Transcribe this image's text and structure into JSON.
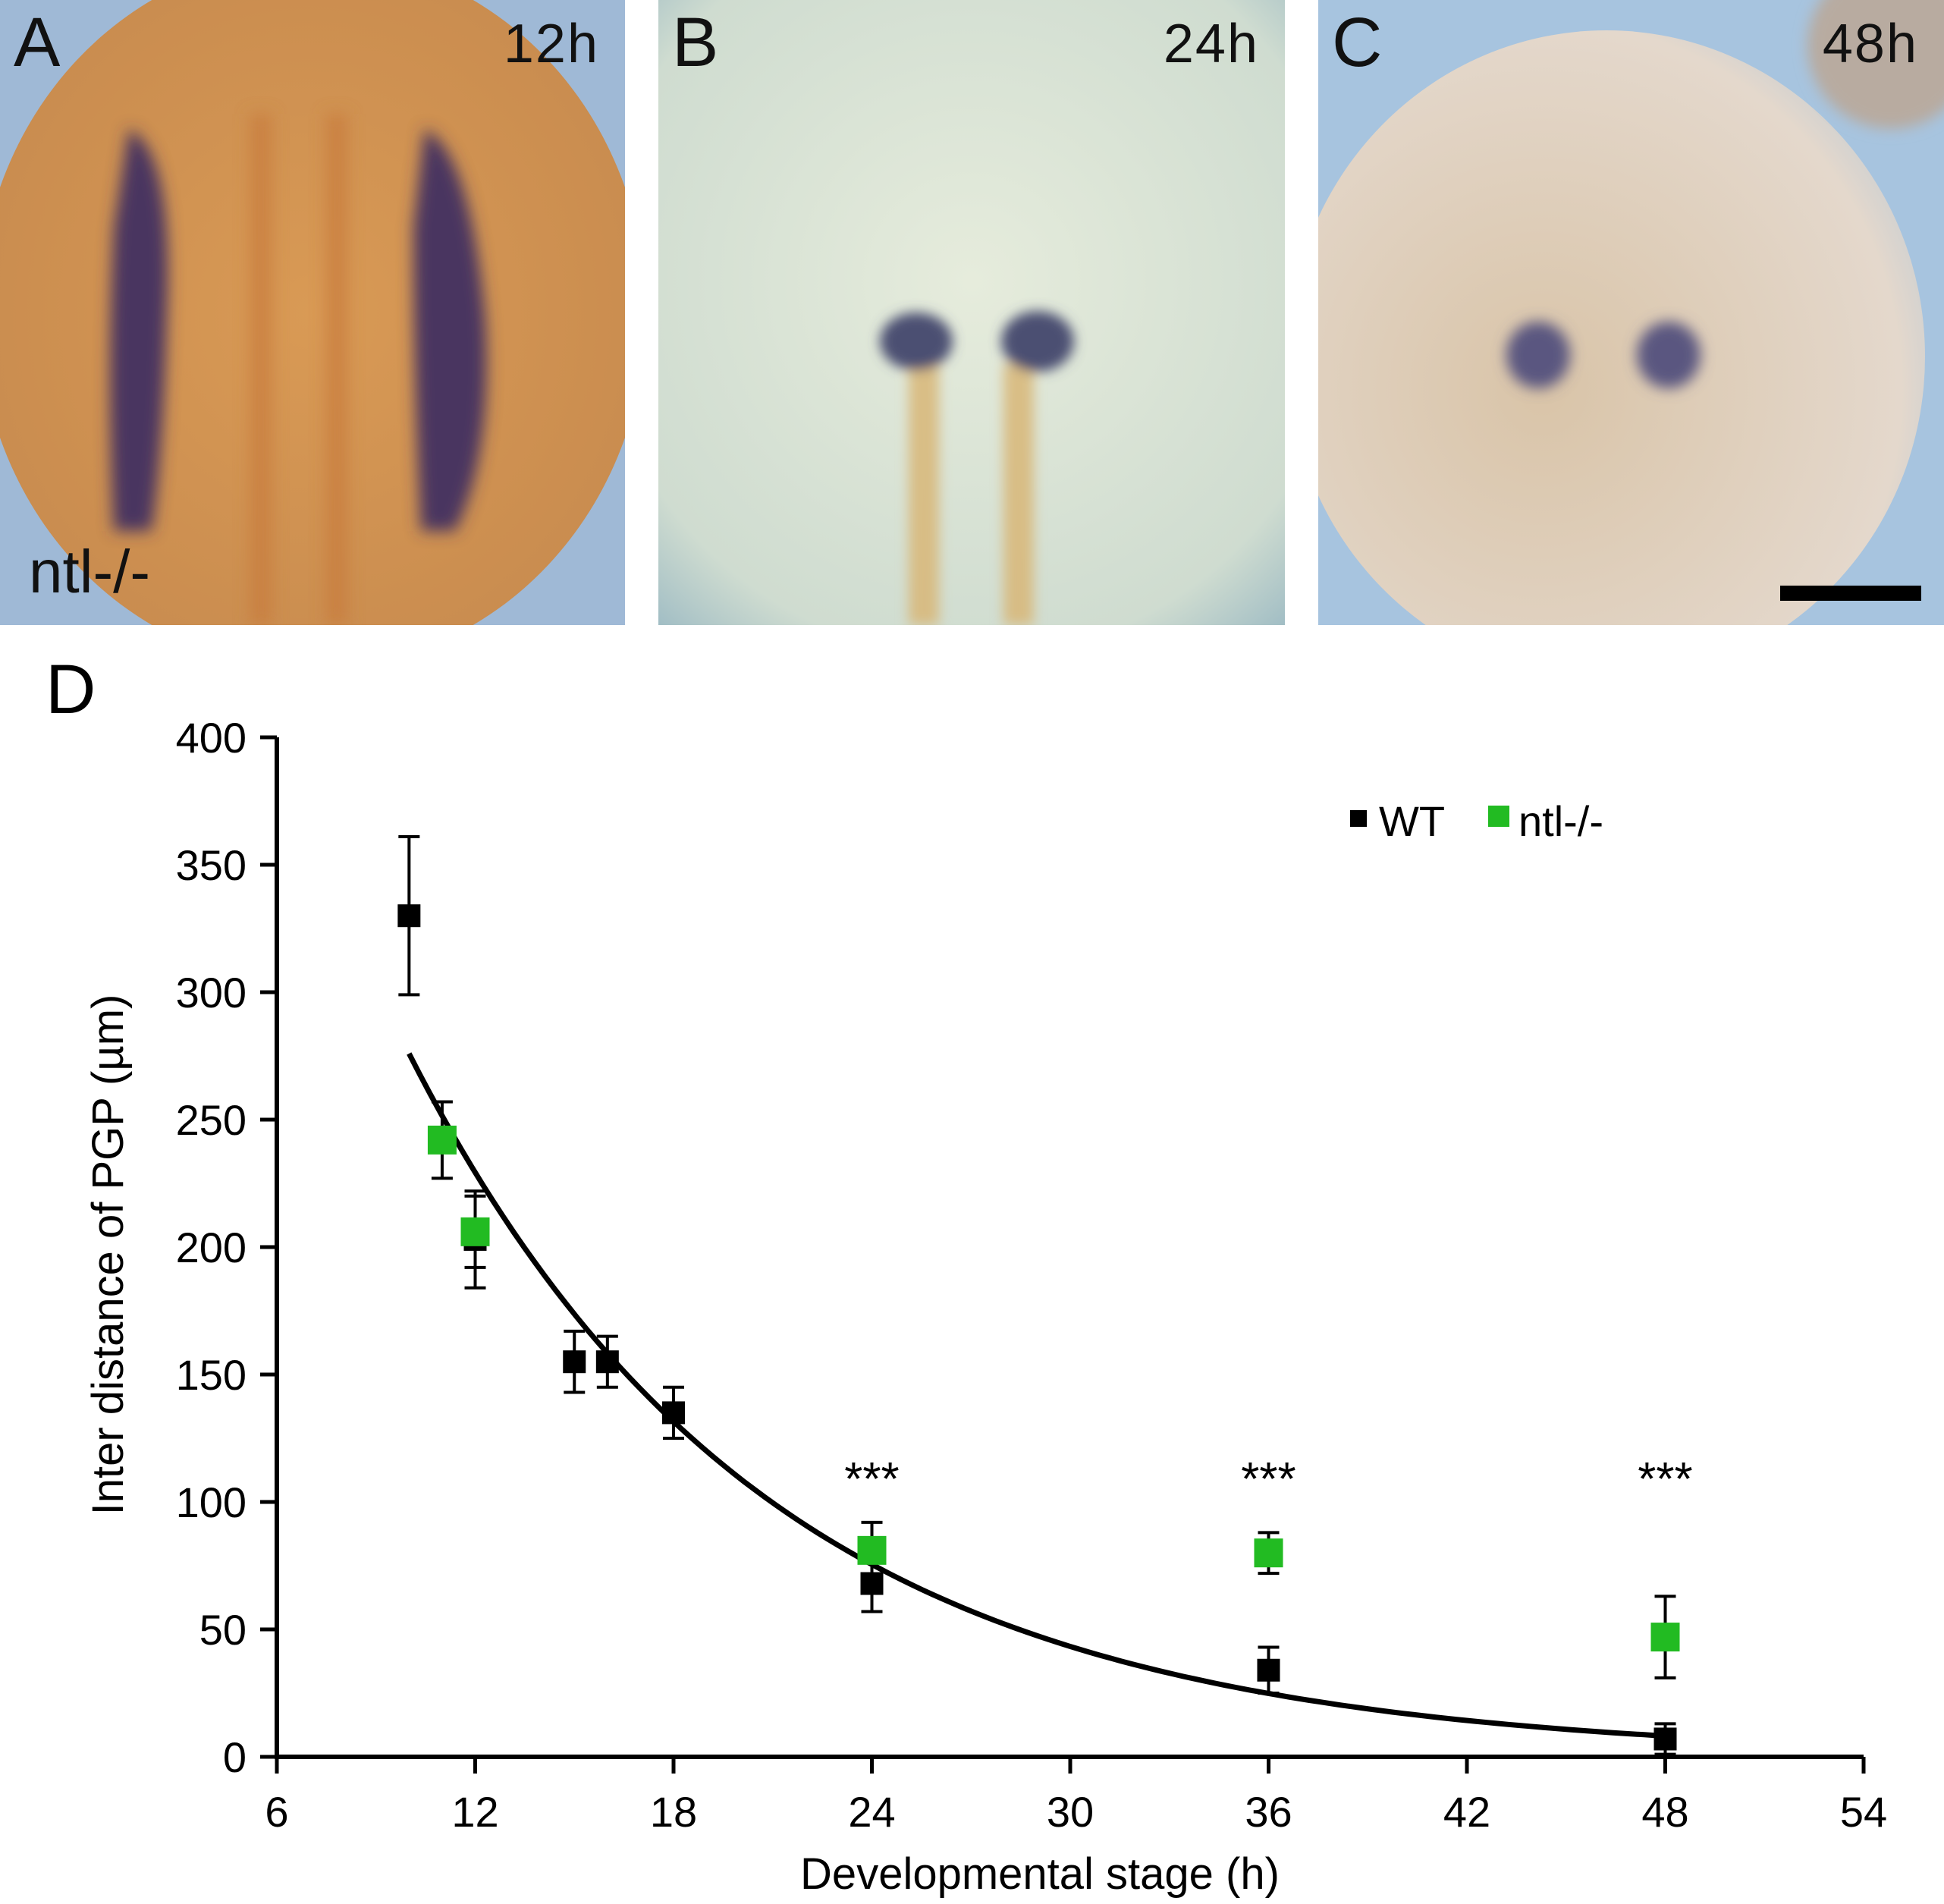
{
  "panels": [
    {
      "letter": "A",
      "time": "12h",
      "genotype": "ntl-/-"
    },
    {
      "letter": "B",
      "time": "24h"
    },
    {
      "letter": "C",
      "time": "48h"
    }
  ],
  "chart_panel_letter": "D",
  "colors": {
    "wt": "#000000",
    "ntl": "#22bb22",
    "fit_line": "#000000"
  },
  "chart_data": {
    "type": "scatter",
    "xlabel": "Developmental stage (h)",
    "ylabel": "Inter distance of PGP (µm)",
    "xlim": [
      6,
      54
    ],
    "ylim": [
      0,
      400
    ],
    "xticks": [
      6,
      12,
      18,
      24,
      30,
      36,
      42,
      48,
      54
    ],
    "yticks": [
      0,
      50,
      100,
      150,
      200,
      250,
      300,
      350,
      400
    ],
    "legend_position": "top-right",
    "series": [
      {
        "name": "WT",
        "x": [
          10,
          12,
          15,
          16,
          18,
          24,
          36,
          48
        ],
        "y": [
          330,
          203,
          155,
          155,
          135,
          68,
          34,
          7
        ],
        "error": [
          31,
          19,
          12,
          10,
          10,
          11,
          9,
          6
        ]
      },
      {
        "name": "ntl-/-",
        "x": [
          11,
          12,
          24,
          36,
          48
        ],
        "y": [
          242,
          206,
          81,
          80,
          47
        ],
        "error": [
          15,
          14,
          11,
          8,
          16
        ]
      }
    ],
    "fit_curve": {
      "type": "exponential",
      "x_range": [
        10,
        48
      ]
    },
    "annotations": [
      {
        "text": "***",
        "x": 24
      },
      {
        "text": "***",
        "x": 36
      },
      {
        "text": "***",
        "x": 48
      }
    ]
  }
}
